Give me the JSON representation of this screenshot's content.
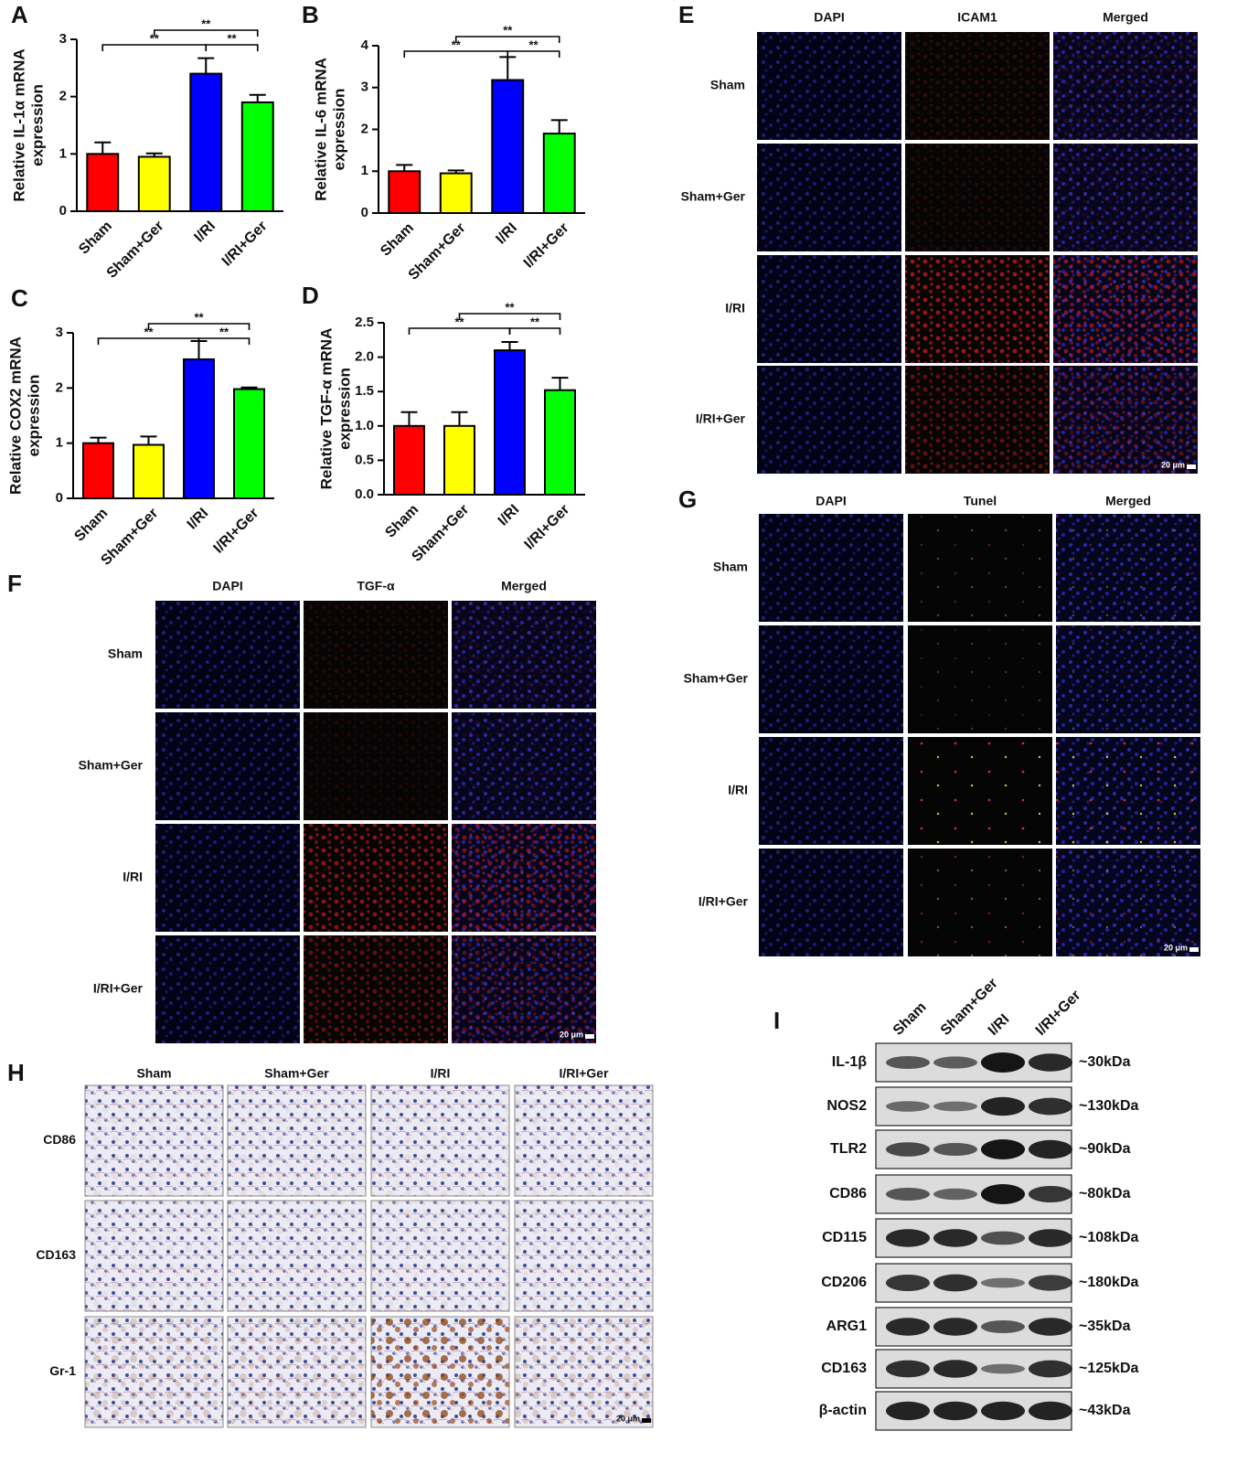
{
  "chart_data": [
    {
      "type": "bar",
      "panel": "A",
      "ylabel": [
        "Relative IL-1α mRNA",
        "expression"
      ],
      "categories": [
        "Sham",
        "Sham+Ger",
        "I/RI",
        "I/RI+Ger"
      ],
      "values": [
        1.0,
        0.95,
        2.4,
        1.9
      ],
      "errors": [
        0.2,
        0.06,
        0.27,
        0.13
      ],
      "colors": [
        "#ff0000",
        "#ffff00",
        "#0000ff",
        "#00ff00"
      ],
      "ylim": [
        0,
        3
      ],
      "yticks": [
        0,
        1,
        2,
        3
      ],
      "brackets": [
        {
          "pair": [
            "Sham",
            "I/RI"
          ],
          "label": "**"
        },
        {
          "pair": [
            "I/RI",
            "I/RI+Ger"
          ],
          "label": "**"
        },
        {
          "pair": [
            "Sham+Ger",
            "I/RI+Ger"
          ],
          "label": "**"
        }
      ]
    },
    {
      "type": "bar",
      "panel": "B",
      "ylabel": [
        "Relative IL-6 mRNA",
        "expression"
      ],
      "categories": [
        "Sham",
        "Sham+Ger",
        "I/RI",
        "I/RI+Ger"
      ],
      "values": [
        1.0,
        0.95,
        3.18,
        1.9
      ],
      "errors": [
        0.15,
        0.07,
        0.55,
        0.32
      ],
      "colors": [
        "#ff0000",
        "#ffff00",
        "#0000ff",
        "#00ff00"
      ],
      "ylim": [
        0,
        4
      ],
      "yticks": [
        0,
        1,
        2,
        3,
        4
      ],
      "brackets": [
        {
          "pair": [
            "Sham",
            "I/RI"
          ],
          "label": "**"
        },
        {
          "pair": [
            "I/RI",
            "I/RI+Ger"
          ],
          "label": "**"
        },
        {
          "pair": [
            "Sham+Ger",
            "I/RI+Ger"
          ],
          "label": "**"
        }
      ]
    },
    {
      "type": "bar",
      "panel": "C",
      "ylabel": [
        "Relative COX2 mRNA",
        "expression"
      ],
      "categories": [
        "Sham",
        "Sham+Ger",
        "I/RI",
        "I/RI+Ger"
      ],
      "values": [
        1.0,
        0.97,
        2.52,
        1.98
      ],
      "errors": [
        0.1,
        0.15,
        0.33,
        0.03
      ],
      "colors": [
        "#ff0000",
        "#ffff00",
        "#0000ff",
        "#00ff00"
      ],
      "ylim": [
        0,
        3
      ],
      "yticks": [
        0,
        1,
        2,
        3
      ],
      "brackets": [
        {
          "pair": [
            "Sham",
            "I/RI"
          ],
          "label": "**"
        },
        {
          "pair": [
            "I/RI",
            "I/RI+Ger"
          ],
          "label": "**"
        },
        {
          "pair": [
            "Sham+Ger",
            "I/RI+Ger"
          ],
          "label": "**"
        }
      ]
    },
    {
      "type": "bar",
      "panel": "D",
      "ylabel": [
        "Relative TGF-α mRNA",
        "expression"
      ],
      "categories": [
        "Sham",
        "Sham+Ger",
        "I/RI",
        "I/RI+Ger"
      ],
      "values": [
        1.0,
        1.0,
        2.1,
        1.52
      ],
      "errors": [
        0.2,
        0.2,
        0.12,
        0.18
      ],
      "colors": [
        "#ff0000",
        "#ffff00",
        "#0000ff",
        "#00ff00"
      ],
      "ylim": [
        0,
        2.5
      ],
      "yticks": [
        {
          "value": 0,
          "label": "0.0"
        },
        0.5,
        {
          "value": 1,
          "label": "1.0"
        },
        1.5,
        {
          "value": 2,
          "label": "2.0"
        },
        2.5
      ],
      "brackets": [
        {
          "pair": [
            "Sham",
            "I/RI"
          ],
          "label": "**"
        },
        {
          "pair": [
            "I/RI",
            "I/RI+Ger"
          ],
          "label": "**"
        },
        {
          "pair": [
            "Sham+Ger",
            "I/RI+Ger"
          ],
          "label": "**"
        }
      ]
    }
  ],
  "panels": {
    "E": {
      "label": "E",
      "columns": [
        "DAPI",
        "ICAM1",
        "Merged"
      ],
      "rows": [
        "Sham",
        "Sham+Ger",
        "I/RI",
        "I/RI+Ger"
      ],
      "scale": "20 μm"
    },
    "G": {
      "label": "G",
      "columns": [
        "DAPI",
        "Tunel",
        "Merged"
      ],
      "rows": [
        "Sham",
        "Sham+Ger",
        "I/RI",
        "I/RI+Ger"
      ],
      "scale": "20 μm"
    },
    "F": {
      "label": "F",
      "columns": [
        "DAPI",
        "TGF-α",
        "Merged"
      ],
      "rows": [
        "Sham",
        "Sham+Ger",
        "I/RI",
        "I/RI+Ger"
      ],
      "scale": "20 μm"
    },
    "H": {
      "label": "H",
      "columns": [
        "Sham",
        "Sham+Ger",
        "I/RI",
        "I/RI+Ger"
      ],
      "rows": [
        "CD86",
        "CD163",
        "Gr-1"
      ],
      "scale": "20 μm"
    }
  },
  "blot": {
    "label": "I",
    "lanes": [
      "Sham",
      "Sham+Ger",
      "I/RI",
      "I/RI+Ger"
    ],
    "proteins": [
      {
        "name": "IL-1β",
        "size": "~30kDa"
      },
      {
        "name": "NOS2",
        "size": "~130kDa"
      },
      {
        "name": "TLR2",
        "size": "~90kDa"
      },
      {
        "name": "CD86",
        "size": "~80kDa"
      },
      {
        "name": "CD115",
        "size": "~108kDa"
      },
      {
        "name": "CD206",
        "size": "~180kDa"
      },
      {
        "name": "ARG1",
        "size": "~35kDa"
      },
      {
        "name": "CD163",
        "size": "~125kDa"
      },
      {
        "name": "β-actin",
        "size": "~43kDa"
      }
    ]
  }
}
